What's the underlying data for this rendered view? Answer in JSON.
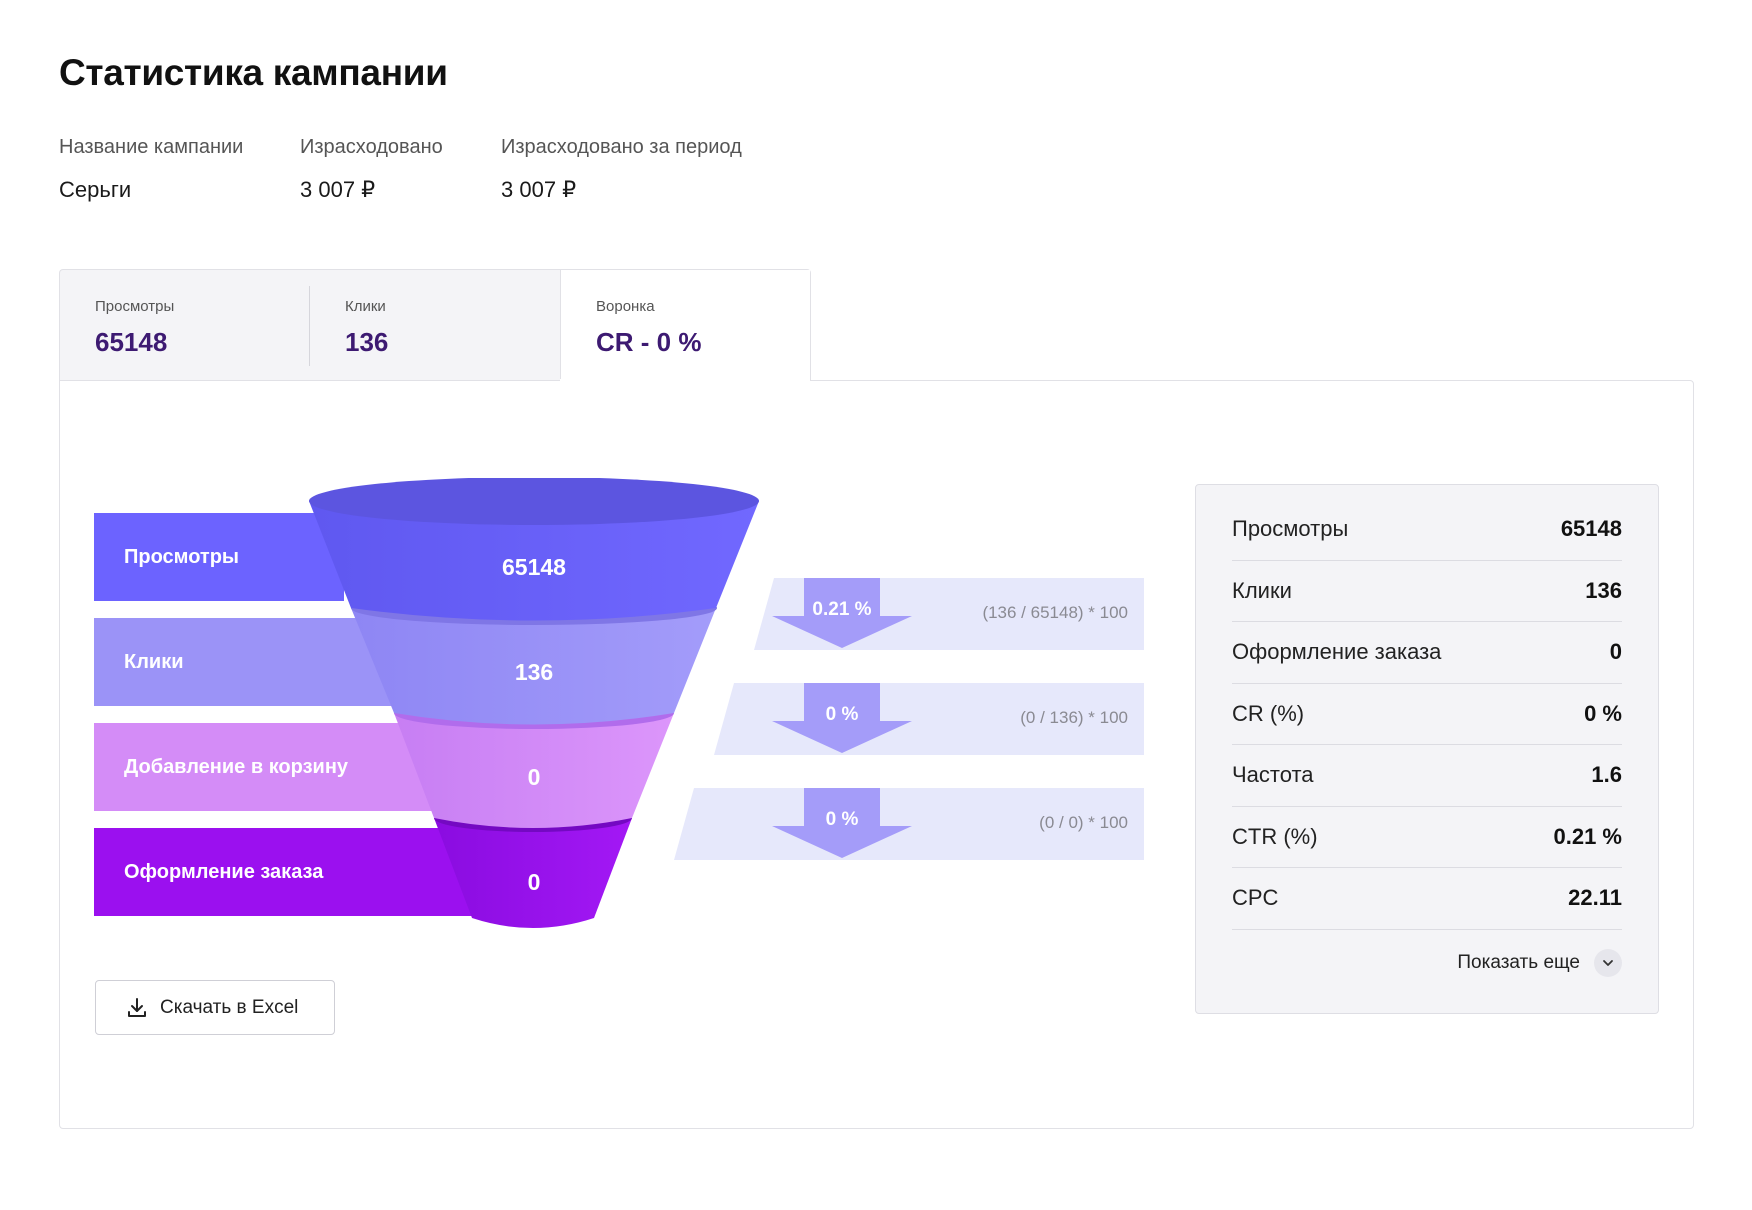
{
  "page": {
    "title": "Статистика кампании"
  },
  "meta": [
    {
      "label": "Название кампании",
      "value": "Серьги"
    },
    {
      "label": "Израсходовано",
      "value": "3 007 ₽"
    },
    {
      "label": "Израсходовано за период",
      "value": "3 007 ₽"
    }
  ],
  "tabs": [
    {
      "label": "Просмотры",
      "value": "65148"
    },
    {
      "label": "Клики",
      "value": "136"
    },
    {
      "label": "Воронка",
      "value": "CR - 0 %"
    }
  ],
  "active_tab": "Воронка",
  "funnel": {
    "stages": [
      {
        "label": "Просмотры",
        "value": "65148",
        "color": "#6c63ff"
      },
      {
        "label": "Клики",
        "value": "136",
        "color": "#9b93f7"
      },
      {
        "label": "Добавление в корзину",
        "value": "0",
        "color": "#d48cf7"
      },
      {
        "label": "Оформление заказа",
        "value": "0",
        "color": "#9b10ef"
      }
    ],
    "conversions": [
      {
        "percent": "0.21 %",
        "formula": "(136 / 65148) * 100"
      },
      {
        "percent": "0 %",
        "formula": "(0 / 136) * 100"
      },
      {
        "percent": "0 %",
        "formula": "(0 / 0) * 100"
      }
    ]
  },
  "download": {
    "label": "Скачать в Excel",
    "icon": "download-icon"
  },
  "stats": {
    "rows": [
      {
        "label": "Просмотры",
        "value": "65148"
      },
      {
        "label": "Клики",
        "value": "136"
      },
      {
        "label": "Оформление заказа",
        "value": "0"
      },
      {
        "label": "CR (%)",
        "value": "0 %"
      },
      {
        "label": "Частота",
        "value": "1.6"
      },
      {
        "label": "CTR (%)",
        "value": "0.21 %"
      },
      {
        "label": "CPC",
        "value": "22.11"
      }
    ],
    "more_label": "Показать еще",
    "more_icon": "chevron-down-icon"
  },
  "colors": {
    "accent": "#3d1a72",
    "arrow": "#a49cf9",
    "band": "#e6e8fb"
  }
}
